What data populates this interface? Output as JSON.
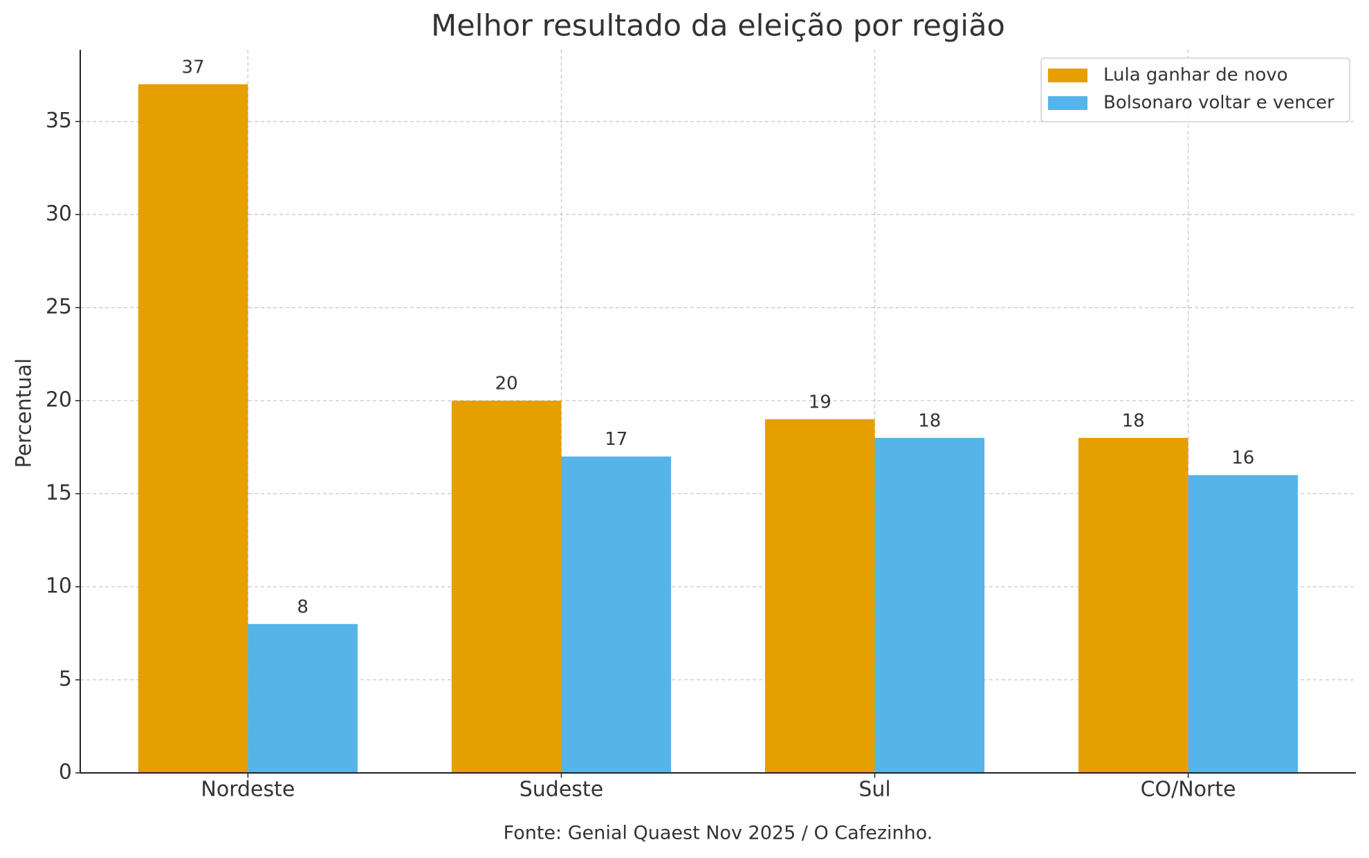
{
  "chart_data": {
    "type": "bar",
    "title": "Melhor resultado da eleição por região",
    "y_label": "Percentual",
    "source": "Fonte: Genial Quaest Nov 2025 / O Cafezinho.",
    "categories": [
      "Nordeste",
      "Sudeste",
      "Sul",
      "CO/Norte"
    ],
    "series": [
      {
        "name": "Lula ganhar de novo",
        "color": "#E69F00",
        "values": [
          37,
          20,
          19,
          18
        ]
      },
      {
        "name": "Bolsonaro voltar e vencer",
        "color": "#56B4E9",
        "values": [
          8,
          17,
          18,
          16
        ]
      }
    ],
    "ylim": [
      0,
      38.85
    ],
    "yticks": [
      0,
      5,
      10,
      15,
      20,
      25,
      30,
      35
    ],
    "grid": true,
    "legend": "upper-right",
    "value_labels": true
  }
}
